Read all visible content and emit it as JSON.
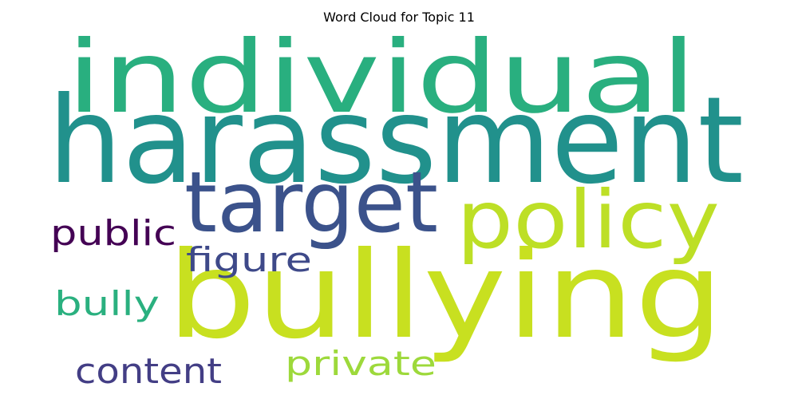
{
  "chart_data": {
    "type": "word_cloud",
    "title": "Word Cloud for Topic 11",
    "words": [
      {
        "text": "harassment",
        "weight": 1.0,
        "color": "#21918c"
      },
      {
        "text": "individual",
        "weight": 0.95,
        "color": "#29af7f"
      },
      {
        "text": "bullying",
        "weight": 0.98,
        "color": "#c8e020"
      },
      {
        "text": "target",
        "weight": 0.72,
        "color": "#3b528b"
      },
      {
        "text": "policy",
        "weight": 0.68,
        "color": "#bddf26"
      },
      {
        "text": "public",
        "weight": 0.4,
        "color": "#440154"
      },
      {
        "text": "figure",
        "weight": 0.37,
        "color": "#3e4989"
      },
      {
        "text": "bully",
        "weight": 0.36,
        "color": "#2ab07f"
      },
      {
        "text": "content",
        "weight": 0.38,
        "color": "#433e85"
      },
      {
        "text": "private",
        "weight": 0.35,
        "color": "#9dd93b"
      }
    ]
  }
}
